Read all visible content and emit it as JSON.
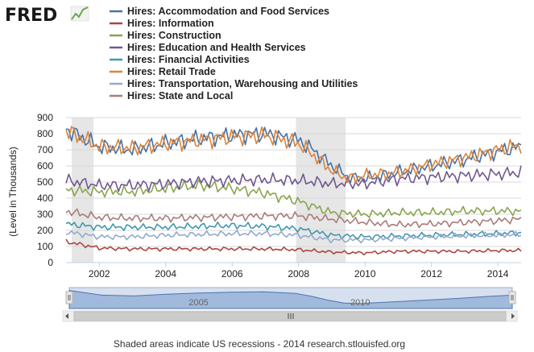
{
  "chart_data": {
    "type": "line",
    "logo": "FRED",
    "ylabel": "(Level in Thousands)",
    "footer": "Shaded areas indicate US recessions - 2014 research.stlouisfed.org",
    "xlim": [
      2001.0,
      2014.7
    ],
    "ylim": [
      0,
      900
    ],
    "yticks": [
      0,
      100,
      200,
      300,
      400,
      500,
      600,
      700,
      800,
      900
    ],
    "yticklabels": [
      "0",
      "100",
      "200",
      "300",
      "400",
      "500",
      "600",
      "700",
      "800",
      "900"
    ],
    "xticks": [
      2002,
      2004,
      2006,
      2008,
      2010,
      2012,
      2014
    ],
    "xticklabels": [
      "2002",
      "2004",
      "2006",
      "2008",
      "2010",
      "2012",
      "2014"
    ],
    "recessions": [
      [
        2001.17,
        2001.83
      ],
      [
        2007.92,
        2009.42
      ]
    ],
    "navigator": {
      "labels": [
        "2005",
        "2010"
      ],
      "label_years": [
        2005,
        2010
      ]
    },
    "series": [
      {
        "name": "Hires: Accommodation and Food Services",
        "color": "#4572a7",
        "x": [
          2001.0,
          2002.0,
          2003.0,
          2004.0,
          2005.0,
          2006.0,
          2007.0,
          2008.0,
          2008.5,
          2009.0,
          2009.5,
          2010.0,
          2011.0,
          2012.0,
          2013.0,
          2014.0,
          2014.7
        ],
        "values": [
          830,
          720,
          700,
          740,
          770,
          790,
          800,
          760,
          690,
          600,
          530,
          520,
          560,
          600,
          640,
          690,
          720
        ]
      },
      {
        "name": "Hires: Information",
        "color": "#aa4643",
        "x": [
          2001.0,
          2002.0,
          2003.0,
          2004.0,
          2005.0,
          2006.0,
          2007.0,
          2008.0,
          2009.0,
          2010.0,
          2011.0,
          2012.0,
          2013.0,
          2014.0,
          2014.7
        ],
        "values": [
          130,
          90,
          85,
          85,
          85,
          85,
          85,
          80,
          65,
          60,
          70,
          70,
          70,
          75,
          75
        ]
      },
      {
        "name": "Hires: Construction",
        "color": "#89a54e",
        "x": [
          2001.0,
          2002.0,
          2003.0,
          2004.0,
          2005.0,
          2006.0,
          2007.0,
          2008.0,
          2009.0,
          2010.0,
          2011.0,
          2012.0,
          2013.0,
          2014.0,
          2014.7
        ],
        "values": [
          450,
          440,
          440,
          460,
          480,
          460,
          430,
          380,
          310,
          300,
          310,
          310,
          320,
          320,
          320
        ]
      },
      {
        "name": "Hires: Education and Health Services",
        "color": "#71588f",
        "x": [
          2001.0,
          2002.0,
          2003.0,
          2004.0,
          2005.0,
          2006.0,
          2007.0,
          2008.0,
          2009.0,
          2010.0,
          2011.0,
          2012.0,
          2013.0,
          2014.0,
          2014.7
        ],
        "values": [
          510,
          480,
          480,
          490,
          505,
          510,
          515,
          510,
          490,
          490,
          520,
          530,
          540,
          550,
          560
        ]
      },
      {
        "name": "Hires: Financial Activities",
        "color": "#4198af",
        "x": [
          2001.0,
          2002.0,
          2003.0,
          2004.0,
          2005.0,
          2006.0,
          2007.0,
          2008.0,
          2009.0,
          2010.0,
          2011.0,
          2012.0,
          2013.0,
          2014.0,
          2014.7
        ],
        "values": [
          240,
          220,
          220,
          220,
          225,
          230,
          225,
          210,
          170,
          160,
          165,
          170,
          175,
          180,
          185
        ]
      },
      {
        "name": "Hires: Retail Trade",
        "color": "#db843d",
        "x": [
          2001.0,
          2002.0,
          2003.0,
          2004.0,
          2005.0,
          2006.0,
          2007.0,
          2008.0,
          2008.5,
          2009.0,
          2009.5,
          2010.0,
          2011.0,
          2012.0,
          2013.0,
          2014.0,
          2014.7
        ],
        "values": [
          820,
          720,
          710,
          740,
          760,
          780,
          790,
          740,
          660,
          570,
          520,
          540,
          560,
          610,
          650,
          700,
          730
        ]
      },
      {
        "name": "Hires: Transportation, Warehousing and Utilities",
        "color": "#93a9cf",
        "x": [
          2001.0,
          2002.0,
          2003.0,
          2004.0,
          2005.0,
          2006.0,
          2007.0,
          2008.0,
          2009.0,
          2010.0,
          2011.0,
          2012.0,
          2013.0,
          2014.0,
          2014.7
        ],
        "values": [
          190,
          160,
          160,
          170,
          175,
          180,
          180,
          170,
          140,
          140,
          150,
          160,
          165,
          170,
          175
        ]
      },
      {
        "name": "Hires: State and Local",
        "color": "#aa7c7a",
        "x": [
          2001.0,
          2002.0,
          2003.0,
          2004.0,
          2005.0,
          2006.0,
          2007.0,
          2008.0,
          2009.0,
          2010.0,
          2011.0,
          2012.0,
          2013.0,
          2014.0,
          2014.7
        ],
        "values": [
          320,
          280,
          275,
          275,
          280,
          285,
          290,
          290,
          270,
          250,
          235,
          240,
          250,
          260,
          270
        ]
      }
    ]
  }
}
